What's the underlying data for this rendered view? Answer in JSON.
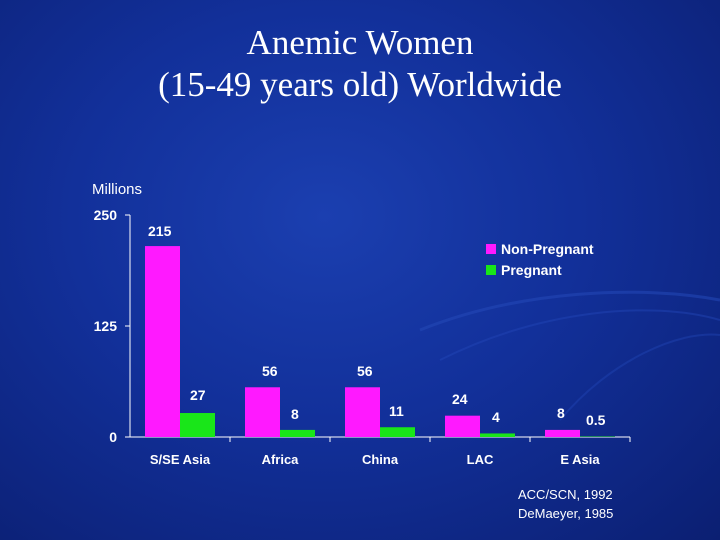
{
  "slide": {
    "title_line1": "Anemic Women",
    "title_line2": "(15-49 years old) Worldwide",
    "sources": [
      "ACC/SCN, 1992",
      "DeMaeyer, 1985"
    ]
  },
  "colors": {
    "background": "#12309a",
    "non_pregnant": "#ff19ff",
    "pregnant": "#19e619",
    "text": "#ffffff"
  },
  "chart_data": {
    "type": "bar",
    "title": "",
    "ylabel": "Millions",
    "xlabel": "",
    "ylim": [
      0,
      250
    ],
    "yticks": [
      0,
      125,
      250
    ],
    "categories": [
      "S/SE Asia",
      "Africa",
      "China",
      "LAC",
      "E Asia"
    ],
    "series": [
      {
        "name": "Non-Pregnant",
        "values": [
          215,
          56,
          56,
          24,
          8
        ],
        "labels": [
          "215",
          "56",
          "56",
          "24",
          "8"
        ]
      },
      {
        "name": "Pregnant",
        "values": [
          27,
          8,
          11,
          4,
          0.5
        ],
        "labels": [
          "27",
          "8",
          "11",
          "4",
          "0.5"
        ]
      }
    ],
    "legend_position": "top-right",
    "grid": false
  }
}
